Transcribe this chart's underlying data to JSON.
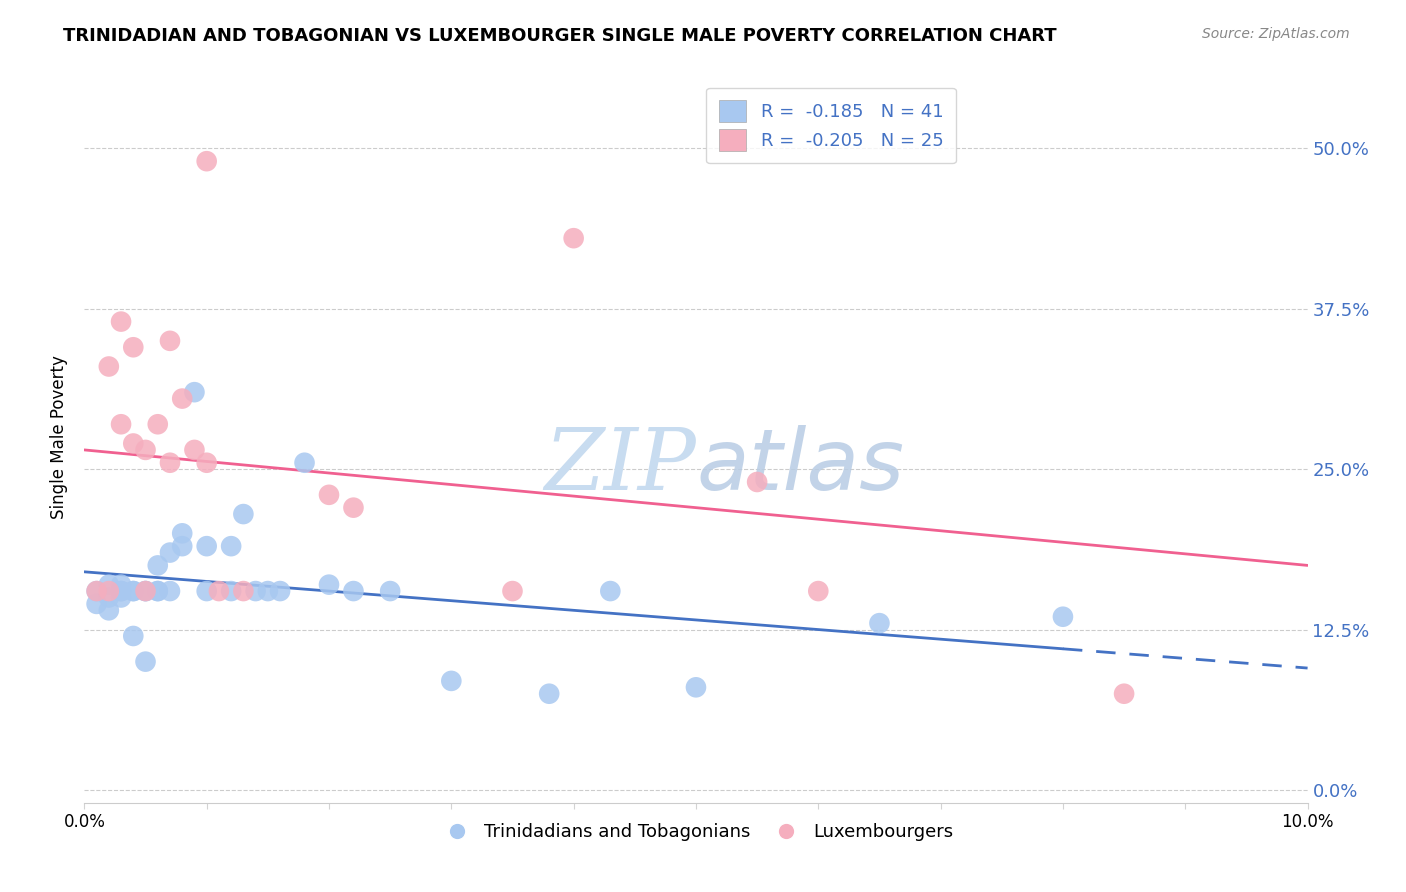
{
  "title": "TRINIDADIAN AND TOBAGONIAN VS LUXEMBOURGER SINGLE MALE POVERTY CORRELATION CHART",
  "source": "Source: ZipAtlas.com",
  "ylabel": "Single Male Poverty",
  "xlim": [
    0.0,
    0.1
  ],
  "ylim": [
    -0.01,
    0.56
  ],
  "ytick_values": [
    0.0,
    0.125,
    0.25,
    0.375,
    0.5
  ],
  "xtick_values": [
    0.0,
    0.01,
    0.02,
    0.03,
    0.04,
    0.05,
    0.06,
    0.07,
    0.08,
    0.09,
    0.1
  ],
  "legend_labels": [
    "Trinidadians and Tobagonians",
    "Luxembourgers"
  ],
  "blue_color": "#A8C8F0",
  "pink_color": "#F5AEBE",
  "blue_line_color": "#4472C4",
  "pink_line_color": "#F06090",
  "watermark_zip": "ZIP",
  "watermark_atlas": "atlas",
  "R_blue": -0.185,
  "N_blue": 41,
  "R_pink": -0.205,
  "N_pink": 25,
  "blue_line_x0": 0.0,
  "blue_line_y0": 0.17,
  "blue_line_x1": 0.1,
  "blue_line_y1": 0.095,
  "pink_line_x0": 0.0,
  "pink_line_y0": 0.265,
  "pink_line_x1": 0.1,
  "pink_line_y1": 0.175,
  "blue_scatter_x": [
    0.001,
    0.001,
    0.002,
    0.002,
    0.002,
    0.003,
    0.003,
    0.003,
    0.003,
    0.004,
    0.004,
    0.004,
    0.005,
    0.005,
    0.005,
    0.006,
    0.006,
    0.006,
    0.007,
    0.007,
    0.008,
    0.008,
    0.009,
    0.01,
    0.01,
    0.012,
    0.012,
    0.013,
    0.014,
    0.015,
    0.016,
    0.018,
    0.02,
    0.022,
    0.025,
    0.03,
    0.038,
    0.043,
    0.05,
    0.065,
    0.08
  ],
  "blue_scatter_y": [
    0.155,
    0.145,
    0.16,
    0.15,
    0.14,
    0.155,
    0.15,
    0.155,
    0.16,
    0.155,
    0.12,
    0.155,
    0.155,
    0.155,
    0.1,
    0.175,
    0.155,
    0.155,
    0.185,
    0.155,
    0.19,
    0.2,
    0.31,
    0.155,
    0.19,
    0.19,
    0.155,
    0.215,
    0.155,
    0.155,
    0.155,
    0.255,
    0.16,
    0.155,
    0.155,
    0.085,
    0.075,
    0.155,
    0.08,
    0.13,
    0.135
  ],
  "pink_scatter_x": [
    0.001,
    0.002,
    0.002,
    0.003,
    0.003,
    0.004,
    0.004,
    0.005,
    0.005,
    0.006,
    0.007,
    0.007,
    0.008,
    0.009,
    0.01,
    0.01,
    0.011,
    0.013,
    0.02,
    0.022,
    0.035,
    0.04,
    0.055,
    0.085,
    0.06
  ],
  "pink_scatter_y": [
    0.155,
    0.155,
    0.33,
    0.285,
    0.365,
    0.27,
    0.345,
    0.265,
    0.155,
    0.285,
    0.255,
    0.35,
    0.305,
    0.265,
    0.255,
    0.49,
    0.155,
    0.155,
    0.23,
    0.22,
    0.155,
    0.43,
    0.24,
    0.075,
    0.155
  ]
}
